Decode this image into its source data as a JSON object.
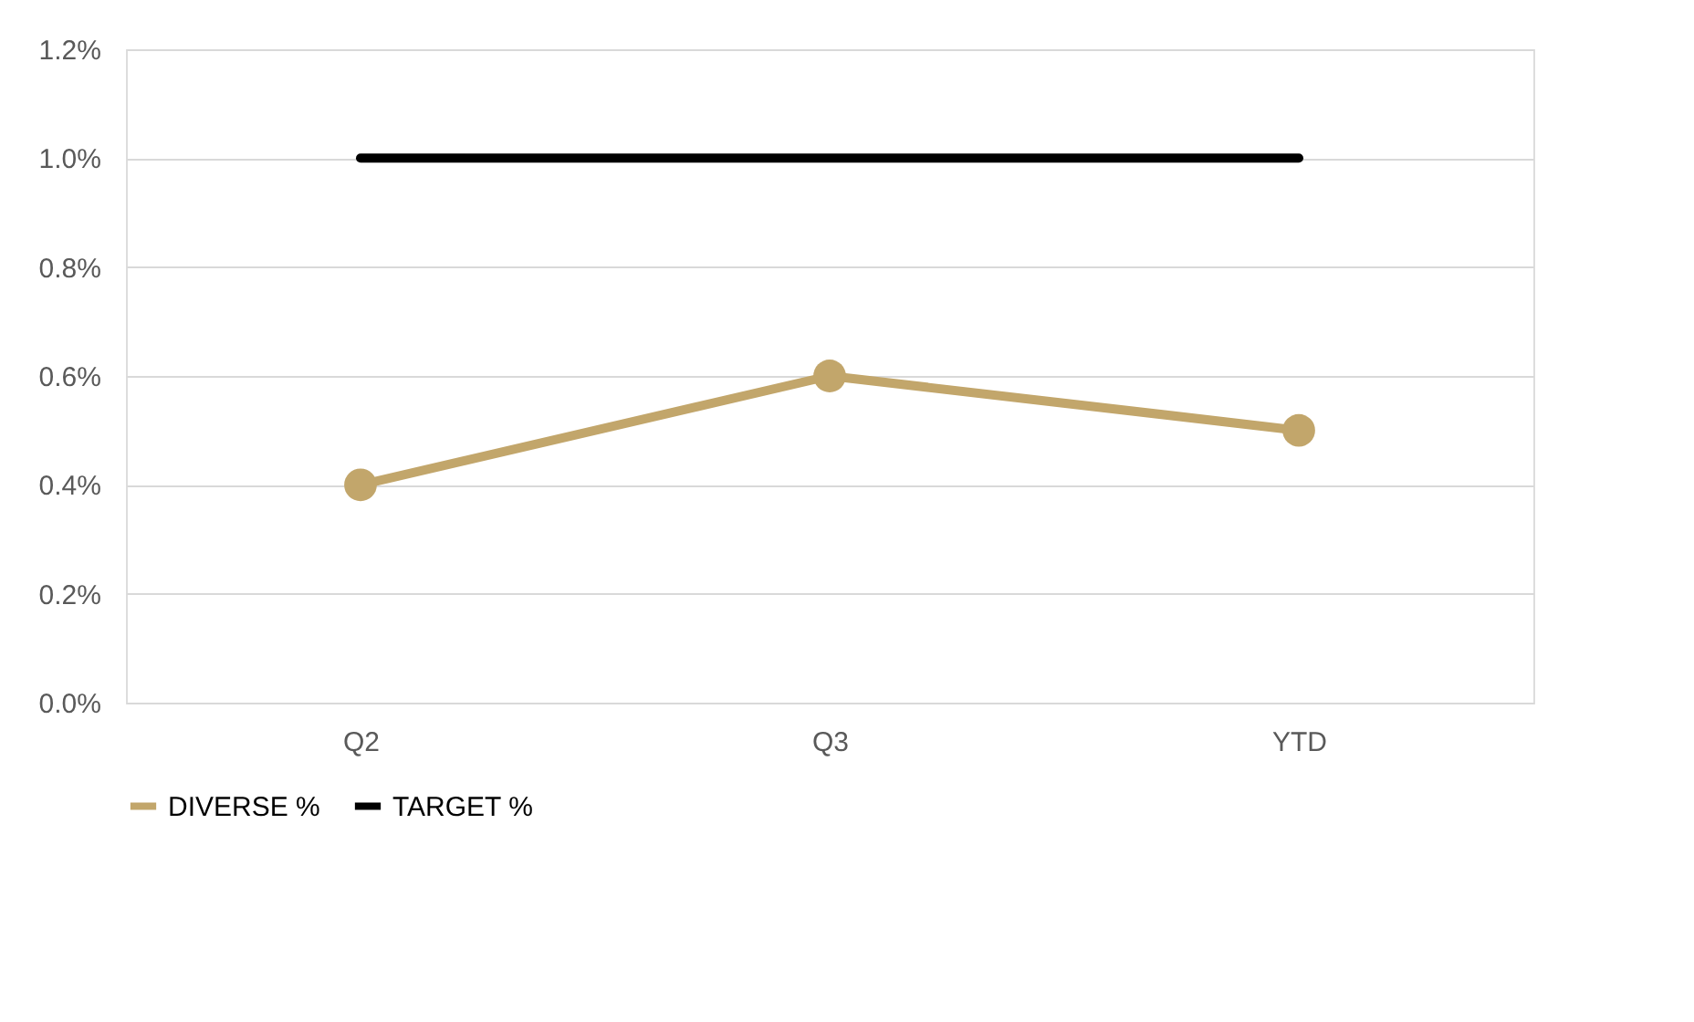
{
  "chart_data": {
    "type": "line",
    "categories": [
      "Q2",
      "Q3",
      "YTD"
    ],
    "series": [
      {
        "name": "DIVERSE %",
        "color": "#c2a66b",
        "marker": "circle",
        "values": [
          0.4,
          0.6,
          0.5
        ]
      },
      {
        "name": "TARGET %",
        "color": "#000000",
        "marker": "none",
        "values": [
          1.0,
          1.0,
          1.0
        ]
      }
    ],
    "ylim": [
      0,
      1.2
    ],
    "yticks": [
      {
        "value": 0,
        "label": "0.0%"
      },
      {
        "value": 0.2,
        "label": "0.2%"
      },
      {
        "value": 0.4,
        "label": "0.4%"
      },
      {
        "value": 0.6,
        "label": "0.6%"
      },
      {
        "value": 0.8,
        "label": "0.8%"
      },
      {
        "value": 1.0,
        "label": "1.0%"
      },
      {
        "value": 1.2,
        "label": "1.2%"
      }
    ],
    "grid": "y",
    "legend": "bottom"
  }
}
